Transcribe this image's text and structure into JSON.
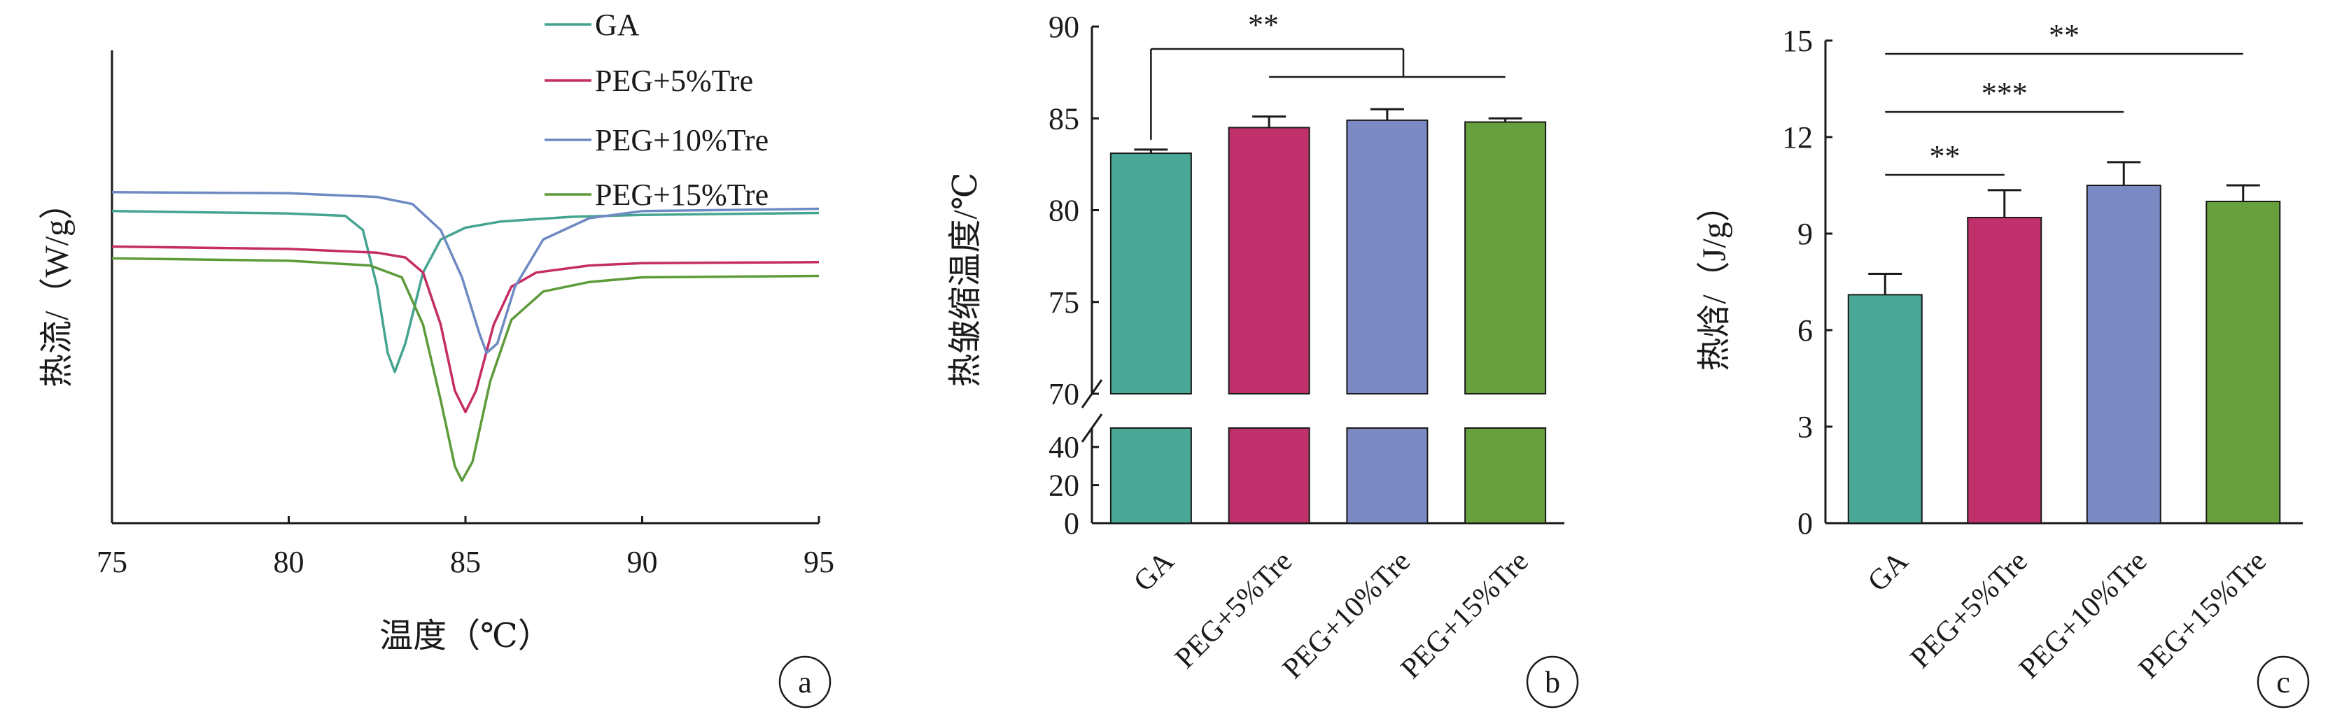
{
  "chart_data": [
    {
      "type": "line",
      "panel": "a",
      "xlabel": "温度（℃）",
      "ylabel": "热流/（W/g）",
      "xlim": [
        75,
        95
      ],
      "xticks": [
        75,
        80,
        85,
        90,
        95
      ],
      "grid": false,
      "legend": "top-center",
      "series": [
        {
          "name": "GA",
          "color": "#45a48f",
          "points": [
            [
              75,
              0.66
            ],
            [
              80,
              0.655
            ],
            [
              81.6,
              0.65
            ],
            [
              82.1,
              0.62
            ],
            [
              82.5,
              0.5
            ],
            [
              82.8,
              0.36
            ],
            [
              83.0,
              0.32
            ],
            [
              83.3,
              0.38
            ],
            [
              83.8,
              0.53
            ],
            [
              84.3,
              0.6
            ],
            [
              85,
              0.625
            ],
            [
              86,
              0.638
            ],
            [
              88,
              0.648
            ],
            [
              90,
              0.652
            ],
            [
              95,
              0.656
            ]
          ]
        },
        {
          "name": "PEG+5%Tre",
          "color": "#c42c63",
          "points": [
            [
              75,
              0.585
            ],
            [
              80,
              0.58
            ],
            [
              82.5,
              0.572
            ],
            [
              83.3,
              0.562
            ],
            [
              83.8,
              0.53
            ],
            [
              84.3,
              0.42
            ],
            [
              84.7,
              0.28
            ],
            [
              85.0,
              0.235
            ],
            [
              85.3,
              0.28
            ],
            [
              85.8,
              0.42
            ],
            [
              86.3,
              0.5
            ],
            [
              87,
              0.53
            ],
            [
              88.5,
              0.545
            ],
            [
              90,
              0.55
            ],
            [
              95,
              0.552
            ]
          ]
        },
        {
          "name": "PEG+10%Tre",
          "color": "#6e8ac3",
          "points": [
            [
              75,
              0.7
            ],
            [
              80,
              0.698
            ],
            [
              82.5,
              0.69
            ],
            [
              83.5,
              0.675
            ],
            [
              84.3,
              0.62
            ],
            [
              84.9,
              0.52
            ],
            [
              85.4,
              0.4
            ],
            [
              85.6,
              0.36
            ],
            [
              85.9,
              0.38
            ],
            [
              86.4,
              0.5
            ],
            [
              87.2,
              0.6
            ],
            [
              88.5,
              0.645
            ],
            [
              90,
              0.66
            ],
            [
              95,
              0.665
            ]
          ]
        },
        {
          "name": "PEG+15%Tre",
          "color": "#5d9b3a",
          "points": [
            [
              75,
              0.56
            ],
            [
              80,
              0.555
            ],
            [
              82.3,
              0.545
            ],
            [
              83.2,
              0.52
            ],
            [
              83.8,
              0.42
            ],
            [
              84.3,
              0.26
            ],
            [
              84.7,
              0.12
            ],
            [
              84.9,
              0.09
            ],
            [
              85.2,
              0.13
            ],
            [
              85.7,
              0.3
            ],
            [
              86.3,
              0.43
            ],
            [
              87.2,
              0.49
            ],
            [
              88.5,
              0.51
            ],
            [
              90,
              0.52
            ],
            [
              95,
              0.523
            ]
          ]
        }
      ],
      "label": "a"
    },
    {
      "type": "bar",
      "panel": "b",
      "ylabel": "热皱缩温度/℃",
      "categories": [
        "GA",
        "PEG+5%Tre",
        "PEG+10%Tre",
        "PEG+15%Tre"
      ],
      "values": [
        83.1,
        84.5,
        84.9,
        84.8
      ],
      "errors": [
        0.2,
        0.6,
        0.6,
        0.2
      ],
      "colors": [
        "#4aa896",
        "#c0306a",
        "#7b8ac2",
        "#67a03c"
      ],
      "broken_axis": {
        "upper": [
          70,
          90
        ],
        "lower": [
          0,
          50
        ]
      },
      "yticks_upper": [
        70,
        75,
        80,
        85,
        90
      ],
      "yticks_lower": [
        0,
        20,
        40
      ],
      "significance": [
        {
          "from": 0,
          "to": [
            1,
            3
          ],
          "label": "**"
        }
      ],
      "label": "b"
    },
    {
      "type": "bar",
      "panel": "c",
      "ylabel": "热焓/（J/g）",
      "categories": [
        "GA",
        "PEG+5%Tre",
        "PEG+10%Tre",
        "PEG+15%Tre"
      ],
      "values": [
        7.1,
        9.5,
        10.5,
        10.0
      ],
      "errors": [
        0.65,
        0.85,
        0.72,
        0.5
      ],
      "colors": [
        "#4aa896",
        "#c0306a",
        "#7b8ac2",
        "#67a03c"
      ],
      "ylim": [
        0,
        15
      ],
      "yticks": [
        0,
        3,
        6,
        9,
        12,
        15
      ],
      "significance": [
        {
          "from": 0,
          "to": 1,
          "label": "**"
        },
        {
          "from": 0,
          "to": 2,
          "label": "***"
        },
        {
          "from": 0,
          "to": 3,
          "label": "**"
        }
      ],
      "label": "c"
    }
  ]
}
